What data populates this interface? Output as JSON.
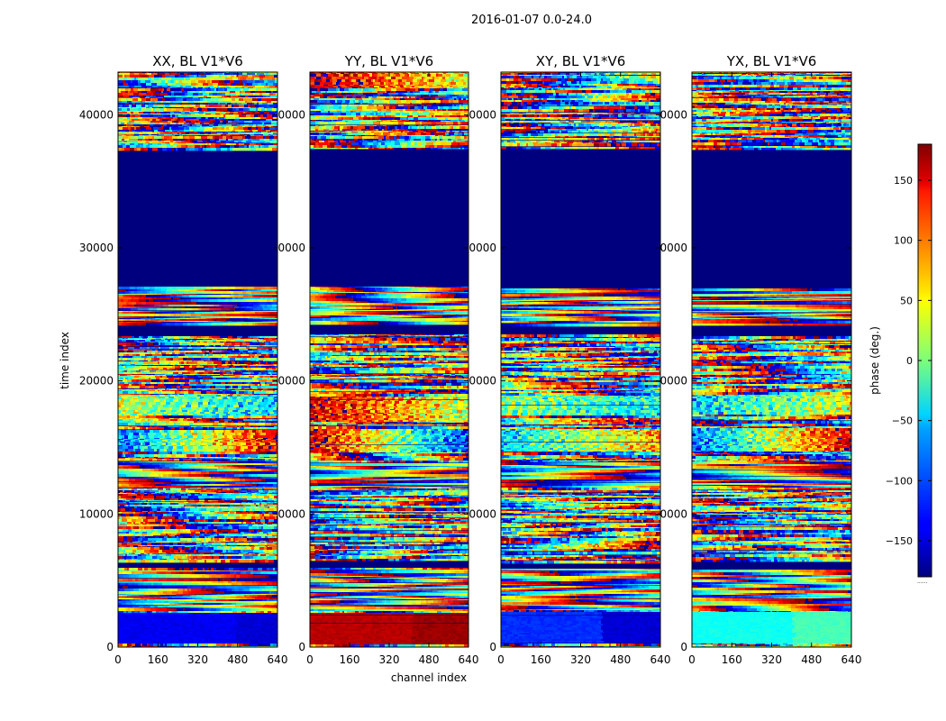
{
  "figure": {
    "suptitle": "2016-01-07 0.0-24.0",
    "colors": {
      "missing": "#00007f",
      "frame": "#000000",
      "background": "#ffffff"
    }
  },
  "chart_data": [
    {
      "type": "heatmap",
      "title": "XX, BL V1*V6",
      "xlabel": "",
      "ylabel": "time index",
      "xlim": [
        0,
        640
      ],
      "ylim": [
        0,
        43200
      ],
      "xticks": [
        0,
        160,
        320,
        480,
        640
      ],
      "yticks": [
        0,
        10000,
        20000,
        30000,
        40000
      ],
      "ytick_labels": [
        "0",
        "10000",
        "20000",
        "30000",
        "40000"
      ],
      "value_unit": "phase (deg.)",
      "seed": 11,
      "bands": [
        {
          "y0": 42000,
          "y1": 43200,
          "mode": "noise",
          "v": -150
        },
        {
          "y0": 37500,
          "y1": 41500,
          "mode": "noise",
          "v": 0
        },
        {
          "y0": 27100,
          "y1": 37500,
          "mode": "missing",
          "v": -180
        },
        {
          "y0": 24300,
          "y1": 27100,
          "mode": "fringe",
          "v": 0
        },
        {
          "y0": 23500,
          "y1": 24300,
          "mode": "missing",
          "v": -180
        },
        {
          "y0": 21700,
          "y1": 23500,
          "mode": "noise",
          "v": 0
        },
        {
          "y0": 17500,
          "y1": 19000,
          "mode": "blend",
          "v": 20,
          "v2": -60
        },
        {
          "y0": 14700,
          "y1": 16500,
          "mode": "blend",
          "v": -100,
          "v2": 150
        },
        {
          "y0": 12000,
          "y1": 14000,
          "mode": "fringe",
          "v": 0
        },
        {
          "y0": 6500,
          "y1": 11800,
          "mode": "noise",
          "v": 0
        },
        {
          "y0": 6000,
          "y1": 6500,
          "mode": "missing",
          "v": -180
        },
        {
          "y0": 2800,
          "y1": 5900,
          "mode": "fringe",
          "v": 0
        },
        {
          "y0": 400,
          "y1": 2700,
          "mode": "solid",
          "v": -140,
          "v2": -150,
          "x_break": 470
        }
      ]
    },
    {
      "type": "heatmap",
      "title": "YY, BL V1*V6",
      "xlabel": "channel index",
      "ylabel": "",
      "xlim": [
        0,
        640
      ],
      "ylim": [
        0,
        43200
      ],
      "xticks": [
        0,
        160,
        320,
        480,
        640
      ],
      "yticks": [
        0,
        10000,
        20000,
        30000,
        40000
      ],
      "ytick_labels": [
        "0",
        "0000",
        "0000",
        "0000",
        "0000"
      ],
      "value_unit": "phase (deg.)",
      "seed": 23,
      "bands": [
        {
          "y0": 42000,
          "y1": 43200,
          "mode": "blend",
          "v": 160,
          "v2": 40
        },
        {
          "y0": 37500,
          "y1": 41500,
          "mode": "noise",
          "v": 0
        },
        {
          "y0": 27100,
          "y1": 37500,
          "mode": "missing",
          "v": -180
        },
        {
          "y0": 24300,
          "y1": 27100,
          "mode": "fringe",
          "v": 0
        },
        {
          "y0": 23500,
          "y1": 24300,
          "mode": "missing",
          "v": -180
        },
        {
          "y0": 21700,
          "y1": 23500,
          "mode": "noise",
          "v": 0
        },
        {
          "y0": 17000,
          "y1": 19000,
          "mode": "blend",
          "v": 150,
          "v2": 20
        },
        {
          "y0": 14700,
          "y1": 16500,
          "mode": "blend",
          "v": 150,
          "v2": -120
        },
        {
          "y0": 12000,
          "y1": 14000,
          "mode": "fringe",
          "v": 0
        },
        {
          "y0": 6500,
          "y1": 11800,
          "mode": "noise",
          "v": 0
        },
        {
          "y0": 6000,
          "y1": 6500,
          "mode": "missing",
          "v": -180
        },
        {
          "y0": 2800,
          "y1": 5900,
          "mode": "fringe",
          "v": 0
        },
        {
          "y0": 400,
          "y1": 2700,
          "mode": "solid",
          "v": 160,
          "v2": 170,
          "x_break": 400
        }
      ]
    },
    {
      "type": "heatmap",
      "title": "XY, BL V1*V6",
      "xlabel": "",
      "ylabel": "",
      "xlim": [
        0,
        640
      ],
      "ylim": [
        0,
        43200
      ],
      "xticks": [
        0,
        160,
        320,
        480,
        640
      ],
      "yticks": [
        0,
        10000,
        20000,
        30000,
        40000
      ],
      "ytick_labels": [
        "0",
        "0000",
        "0000",
        "0000",
        "0000"
      ],
      "value_unit": "phase (deg.)",
      "seed": 37,
      "bands": [
        {
          "y0": 42000,
          "y1": 43200,
          "mode": "noise",
          "v": 0
        },
        {
          "y0": 37500,
          "y1": 41500,
          "mode": "noise",
          "v": 0
        },
        {
          "y0": 27100,
          "y1": 37500,
          "mode": "missing",
          "v": -180
        },
        {
          "y0": 24300,
          "y1": 27100,
          "mode": "fringe",
          "v": 0
        },
        {
          "y0": 23500,
          "y1": 24300,
          "mode": "missing",
          "v": -180
        },
        {
          "y0": 21700,
          "y1": 23500,
          "mode": "noise",
          "v": 0
        },
        {
          "y0": 17500,
          "y1": 19000,
          "mode": "blend",
          "v": 0,
          "v2": -40
        },
        {
          "y0": 14700,
          "y1": 16500,
          "mode": "blend",
          "v": -60,
          "v2": 80
        },
        {
          "y0": 12000,
          "y1": 14000,
          "mode": "fringe",
          "v": 0
        },
        {
          "y0": 6500,
          "y1": 11800,
          "mode": "noise",
          "v": 0
        },
        {
          "y0": 6000,
          "y1": 6500,
          "mode": "missing",
          "v": -180
        },
        {
          "y0": 2800,
          "y1": 5900,
          "mode": "fringe",
          "v": 0
        },
        {
          "y0": 400,
          "y1": 2700,
          "mode": "solid",
          "v": -120,
          "v2": -150,
          "x_break": 400
        }
      ]
    },
    {
      "type": "heatmap",
      "title": "YX, BL V1*V6",
      "xlabel": "",
      "ylabel": "",
      "xlim": [
        0,
        640
      ],
      "ylim": [
        0,
        43200
      ],
      "xticks": [
        0,
        160,
        320,
        480,
        640
      ],
      "yticks": [
        0,
        10000,
        20000,
        30000,
        40000
      ],
      "ytick_labels": [
        "0",
        "0000",
        "0000",
        "0000",
        "0000"
      ],
      "value_unit": "phase (deg.)",
      "seed": 53,
      "bands": [
        {
          "y0": 42000,
          "y1": 43200,
          "mode": "noise",
          "v": 0
        },
        {
          "y0": 37500,
          "y1": 41500,
          "mode": "noise",
          "v": 0
        },
        {
          "y0": 27100,
          "y1": 37500,
          "mode": "missing",
          "v": -180
        },
        {
          "y0": 24300,
          "y1": 27100,
          "mode": "fringe",
          "v": 0
        },
        {
          "y0": 23500,
          "y1": 24300,
          "mode": "missing",
          "v": -180
        },
        {
          "y0": 21700,
          "y1": 23500,
          "mode": "noise",
          "v": 0
        },
        {
          "y0": 17500,
          "y1": 19000,
          "mode": "blend",
          "v": -60,
          "v2": 40
        },
        {
          "y0": 14700,
          "y1": 16500,
          "mode": "blend",
          "v": -100,
          "v2": 150
        },
        {
          "y0": 12000,
          "y1": 14000,
          "mode": "fringe",
          "v": 0
        },
        {
          "y0": 6500,
          "y1": 11800,
          "mode": "noise",
          "v": 0
        },
        {
          "y0": 6000,
          "y1": 6500,
          "mode": "missing",
          "v": -180
        },
        {
          "y0": 2800,
          "y1": 5900,
          "mode": "fringe",
          "v": 0
        },
        {
          "y0": 400,
          "y1": 2700,
          "mode": "solid",
          "v": -40,
          "v2": -20,
          "x_break": 400
        }
      ]
    }
  ],
  "colorbar": {
    "label": "phase (deg.)",
    "range": [
      -180,
      180
    ],
    "ticks": [
      -150,
      -100,
      -50,
      0,
      50,
      100,
      150
    ],
    "tick_labels": [
      "−150",
      "−100",
      "−50",
      "0",
      "50",
      "100",
      "150"
    ],
    "colormap": "jet"
  }
}
